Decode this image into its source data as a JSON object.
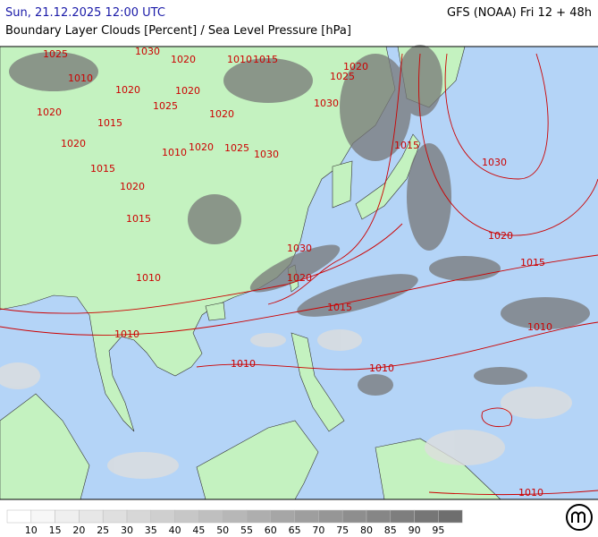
{
  "header": {
    "datetime": "Sun, 21.12.2025 12:00 UTC",
    "model": "GFS (NOAA) Fri 12 + 48h",
    "title": "Boundary Layer Clouds [Percent] / Sea Level Pressure [hPa]"
  },
  "map": {
    "isobar_labels": [
      "1025",
      "1030",
      "1020",
      "1010",
      "1015",
      "1020",
      "1025",
      "1010",
      "1020",
      "1020",
      "1025",
      "1030",
      "1020",
      "1015",
      "1020",
      "1020",
      "1010",
      "1020",
      "1025",
      "1030",
      "1015",
      "1030",
      "1015",
      "1020",
      "1015",
      "1020",
      "1030",
      "1015",
      "1010",
      "1020",
      "1015",
      "1010",
      "1010",
      "1010",
      "1010",
      "1010"
    ]
  },
  "legend": {
    "labels": [
      "10",
      "15",
      "20",
      "25",
      "30",
      "35",
      "40",
      "45",
      "50",
      "55",
      "60",
      "65",
      "70",
      "75",
      "80",
      "85",
      "90",
      "95"
    ]
  }
}
